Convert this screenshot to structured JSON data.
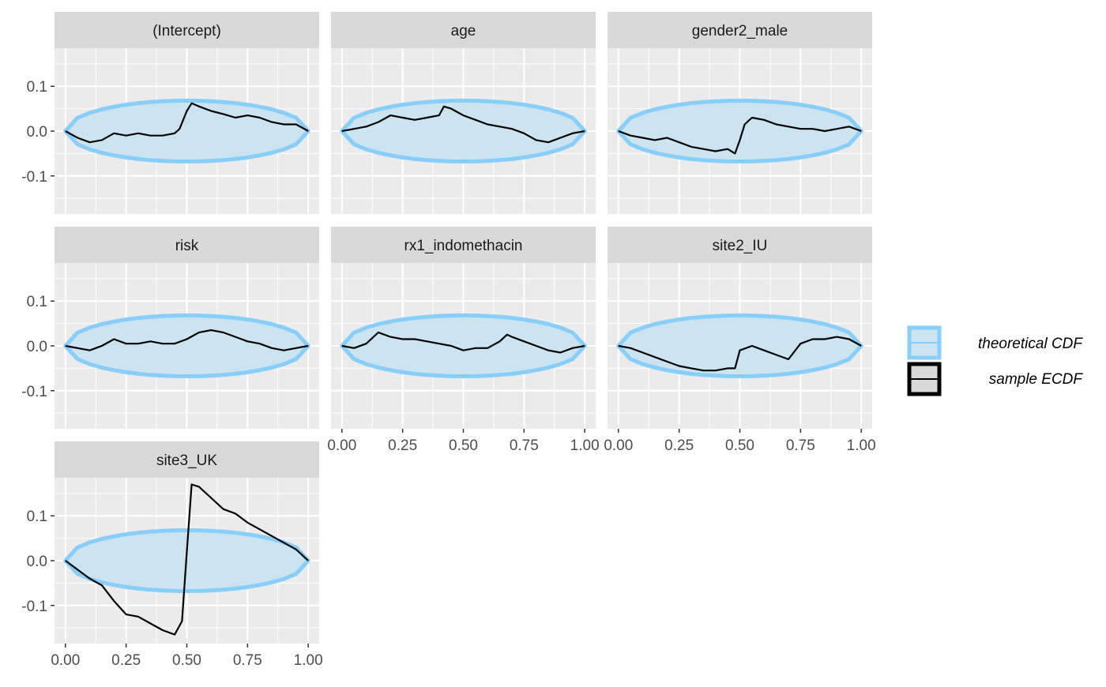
{
  "chart_data": {
    "type": "line",
    "title": "",
    "xlabel": "",
    "ylabel": "",
    "xlim": [
      0,
      1
    ],
    "ylim": [
      -0.185,
      0.185
    ],
    "x_ticks": [
      "0.00",
      "0.25",
      "0.50",
      "0.75",
      "1.00"
    ],
    "y_ticks": [
      "-0.1",
      "0.0",
      "0.1"
    ],
    "grid": true,
    "legend_position": "right",
    "legend": [
      {
        "name": "theoretical CDF",
        "kind": "band"
      },
      {
        "name": "sample ECDF",
        "kind": "line"
      }
    ],
    "theoretical_band": {
      "x": [
        0,
        0.05,
        0.1,
        0.15,
        0.2,
        0.25,
        0.3,
        0.35,
        0.4,
        0.45,
        0.5,
        0.55,
        0.6,
        0.65,
        0.7,
        0.75,
        0.8,
        0.85,
        0.9,
        0.95,
        1
      ],
      "upper": [
        0,
        0.0296,
        0.0407,
        0.0484,
        0.0543,
        0.0588,
        0.0623,
        0.0648,
        0.0665,
        0.0676,
        0.0679,
        0.0676,
        0.0665,
        0.0648,
        0.0623,
        0.0588,
        0.0543,
        0.0484,
        0.0407,
        0.0296,
        0
      ],
      "lower": [
        0,
        -0.0296,
        -0.0407,
        -0.0484,
        -0.0543,
        -0.0588,
        -0.0623,
        -0.0648,
        -0.0665,
        -0.0676,
        -0.0679,
        -0.0676,
        -0.0665,
        -0.0648,
        -0.0623,
        -0.0588,
        -0.0543,
        -0.0484,
        -0.0407,
        -0.0296,
        0
      ]
    },
    "panels": [
      {
        "label": "(Intercept)",
        "ecdf": {
          "x": [
            0,
            0.05,
            0.1,
            0.15,
            0.2,
            0.25,
            0.3,
            0.35,
            0.4,
            0.45,
            0.47,
            0.5,
            0.52,
            0.55,
            0.6,
            0.65,
            0.7,
            0.75,
            0.8,
            0.85,
            0.9,
            0.95,
            1
          ],
          "y": [
            0,
            -0.015,
            -0.025,
            -0.02,
            -0.005,
            -0.01,
            -0.005,
            -0.01,
            -0.01,
            -0.005,
            0.005,
            0.045,
            0.062,
            0.055,
            0.045,
            0.038,
            0.03,
            0.035,
            0.03,
            0.02,
            0.015,
            0.015,
            0
          ]
        }
      },
      {
        "label": "age",
        "ecdf": {
          "x": [
            0,
            0.05,
            0.1,
            0.15,
            0.2,
            0.25,
            0.3,
            0.35,
            0.4,
            0.42,
            0.45,
            0.5,
            0.55,
            0.6,
            0.65,
            0.7,
            0.75,
            0.8,
            0.85,
            0.9,
            0.95,
            1
          ],
          "y": [
            0,
            0.005,
            0.01,
            0.02,
            0.035,
            0.03,
            0.025,
            0.03,
            0.035,
            0.055,
            0.05,
            0.035,
            0.025,
            0.015,
            0.01,
            0.005,
            -0.005,
            -0.02,
            -0.025,
            -0.015,
            -0.005,
            0
          ]
        }
      },
      {
        "label": "gender2_male",
        "ecdf": {
          "x": [
            0,
            0.05,
            0.1,
            0.15,
            0.2,
            0.25,
            0.3,
            0.35,
            0.4,
            0.45,
            0.48,
            0.5,
            0.52,
            0.55,
            0.6,
            0.65,
            0.7,
            0.75,
            0.8,
            0.85,
            0.9,
            0.95,
            1
          ],
          "y": [
            0,
            -0.01,
            -0.015,
            -0.02,
            -0.015,
            -0.025,
            -0.035,
            -0.04,
            -0.045,
            -0.04,
            -0.05,
            -0.02,
            0.015,
            0.03,
            0.025,
            0.015,
            0.01,
            0.005,
            0.005,
            0.0,
            0.005,
            0.01,
            0
          ]
        }
      },
      {
        "label": "risk",
        "ecdf": {
          "x": [
            0,
            0.05,
            0.1,
            0.15,
            0.2,
            0.25,
            0.3,
            0.35,
            0.4,
            0.45,
            0.5,
            0.55,
            0.6,
            0.65,
            0.7,
            0.75,
            0.8,
            0.85,
            0.9,
            0.95,
            1
          ],
          "y": [
            0,
            -0.005,
            -0.01,
            0.0,
            0.015,
            0.005,
            0.005,
            0.01,
            0.005,
            0.005,
            0.015,
            0.03,
            0.035,
            0.03,
            0.02,
            0.01,
            0.005,
            -0.005,
            -0.01,
            -0.005,
            0
          ]
        }
      },
      {
        "label": "rx1_indomethacin",
        "ecdf": {
          "x": [
            0,
            0.05,
            0.1,
            0.15,
            0.2,
            0.25,
            0.3,
            0.35,
            0.4,
            0.45,
            0.5,
            0.55,
            0.6,
            0.65,
            0.68,
            0.7,
            0.75,
            0.8,
            0.85,
            0.9,
            0.95,
            1
          ],
          "y": [
            0,
            -0.005,
            0.005,
            0.03,
            0.02,
            0.015,
            0.015,
            0.01,
            0.005,
            0.0,
            -0.01,
            -0.005,
            -0.005,
            0.01,
            0.025,
            0.02,
            0.01,
            0.0,
            -0.01,
            -0.015,
            -0.005,
            0
          ]
        }
      },
      {
        "label": "site2_IU",
        "ecdf": {
          "x": [
            0,
            0.05,
            0.1,
            0.15,
            0.2,
            0.25,
            0.3,
            0.35,
            0.4,
            0.45,
            0.48,
            0.5,
            0.55,
            0.6,
            0.65,
            0.7,
            0.75,
            0.8,
            0.85,
            0.9,
            0.95,
            1
          ],
          "y": [
            0,
            -0.005,
            -0.015,
            -0.025,
            -0.035,
            -0.045,
            -0.05,
            -0.055,
            -0.055,
            -0.05,
            -0.05,
            -0.01,
            0.0,
            -0.01,
            -0.02,
            -0.03,
            0.005,
            0.015,
            0.015,
            0.02,
            0.015,
            0
          ]
        }
      },
      {
        "label": "site3_UK",
        "ecdf": {
          "x": [
            0,
            0.05,
            0.1,
            0.15,
            0.2,
            0.25,
            0.3,
            0.35,
            0.4,
            0.45,
            0.48,
            0.5,
            0.52,
            0.55,
            0.6,
            0.65,
            0.7,
            0.75,
            0.8,
            0.85,
            0.9,
            0.95,
            1
          ],
          "y": [
            0,
            -0.02,
            -0.04,
            -0.055,
            -0.09,
            -0.12,
            -0.125,
            -0.14,
            -0.155,
            -0.165,
            -0.135,
            0.02,
            0.17,
            0.165,
            0.14,
            0.115,
            0.105,
            0.085,
            0.07,
            0.055,
            0.04,
            0.025,
            0
          ]
        }
      }
    ]
  },
  "colors": {
    "panel_background": "#ebebeb",
    "strip_background": "#d9d9d9",
    "gridline": "#ffffff",
    "band_fill": "#cce4ef",
    "band_outline": "#87cefa",
    "ecdf_line": "#000000",
    "tick_text": "#4d4d4d",
    "strip_text": "#1a1a1a"
  }
}
